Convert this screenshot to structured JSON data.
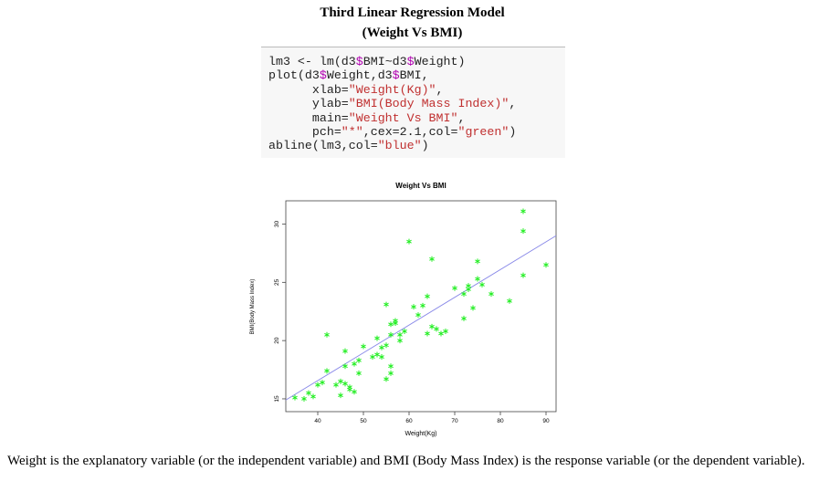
{
  "header": {
    "title": [
      "Third Linear Regression Model",
      "(Weight Vs BMI)"
    ]
  },
  "code": {
    "lines": [
      [
        "lm3 <- lm(d3",
        "$",
        "BMI~d3",
        "$",
        "Weight)"
      ],
      [
        "plot(d3",
        "$",
        "Weight,d3",
        "$",
        "BMI,"
      ],
      [
        "      xlab=",
        "\"Weight(Kg)\"",
        ","
      ],
      [
        "      ylab=",
        "\"BMI(Body Mass Index)\"",
        ","
      ],
      [
        "      main=",
        "\"Weight Vs BMI\"",
        ","
      ],
      [
        "      pch=",
        "\"*\"",
        ",cex=2.1,col=",
        "\"green\"",
        ")"
      ],
      [
        "abline(lm3,col=",
        "\"blue\"",
        ")"
      ]
    ]
  },
  "chart_data": {
    "type": "scatter",
    "title": "Weight Vs BMI",
    "x_label": "Weight(Kg)",
    "y_label": "BMI(Body Mass Index)",
    "color": "#22ee22",
    "x": [
      35,
      37,
      38,
      39,
      40,
      41,
      42,
      42,
      44,
      45,
      45,
      46,
      46,
      46,
      47,
      47,
      48,
      48,
      49,
      49,
      50,
      52,
      53,
      53,
      54,
      54,
      55,
      55,
      55,
      56,
      56,
      56,
      56,
      57,
      57,
      58,
      58,
      59,
      60,
      61,
      62,
      63,
      64,
      64,
      65,
      65,
      66,
      67,
      68,
      70,
      72,
      72,
      73,
      73,
      74,
      75,
      75,
      76,
      78,
      82,
      85,
      85,
      85,
      90
    ],
    "values": [
      15.1,
      15.0,
      15.5,
      15.2,
      16.2,
      16.4,
      17.4,
      20.5,
      16.2,
      15.3,
      16.5,
      16.3,
      17.8,
      19.1,
      15.8,
      16.0,
      15.6,
      18.0,
      17.2,
      18.3,
      19.5,
      18.6,
      18.8,
      20.2,
      18.6,
      19.4,
      19.6,
      16.7,
      23.1,
      17.2,
      17.8,
      20.5,
      21.4,
      21.5,
      21.7,
      20.5,
      20.0,
      20.8,
      28.5,
      22.9,
      22.2,
      23.0,
      23.8,
      20.6,
      21.2,
      27.0,
      21.0,
      20.6,
      20.8,
      24.5,
      21.9,
      24.0,
      24.4,
      24.7,
      22.8,
      25.3,
      26.8,
      24.8,
      24.0,
      23.4,
      31.1,
      29.4,
      25.6,
      26.5
    ],
    "fit_line": {
      "x": [
        33,
        92.2
      ],
      "values": [
        14.9,
        29.0
      ],
      "color": "#8888e8"
    },
    "xlim": [
      33,
      92.2
    ],
    "xticks": [
      40,
      50,
      60,
      70,
      80,
      90
    ],
    "ylim": [
      13.9,
      32.0
    ],
    "yticks": [
      15,
      20,
      25,
      30
    ]
  },
  "paragraph": "Weight is the explanatory variable (or the independent variable) and BMI (Body Mass Index) is the response variable (or the dependent variable)."
}
